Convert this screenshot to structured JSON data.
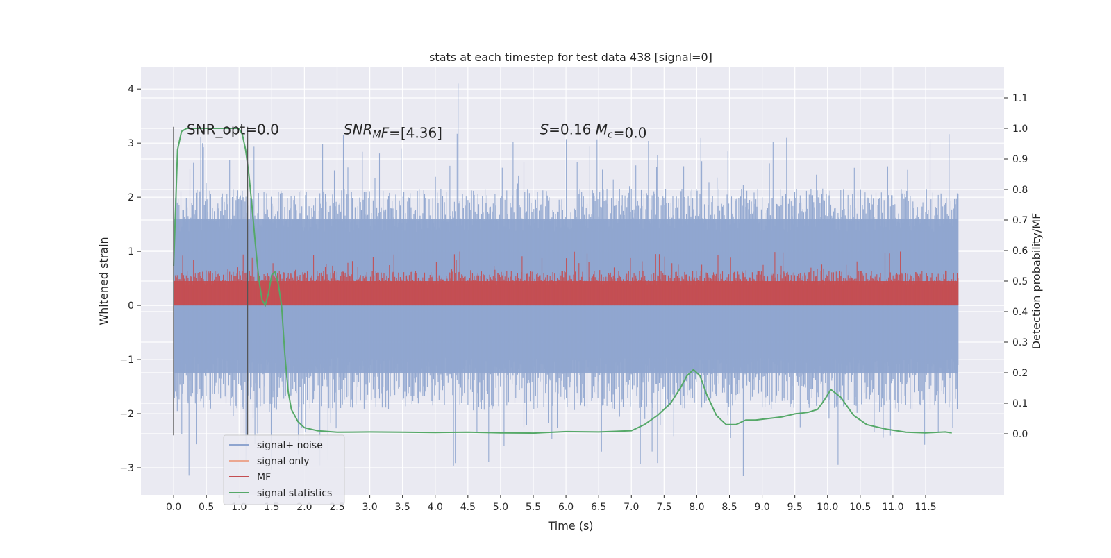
{
  "chart_data": {
    "type": "line",
    "title": "stats at each timestep for test data 438 [signal=0]",
    "xlabel": "Time (s)",
    "ylabel": "Whitened strain",
    "y2label": "Detection probability/MF",
    "xlim": [
      -0.5,
      12.7
    ],
    "ylim": [
      -3.5,
      4.4
    ],
    "y2lim": [
      -0.2,
      1.2
    ],
    "grid": true,
    "x_ticks": [
      0.0,
      0.5,
      1.0,
      1.5,
      2.0,
      2.5,
      3.0,
      3.5,
      4.0,
      4.5,
      5.0,
      5.5,
      6.0,
      6.5,
      7.0,
      7.5,
      8.0,
      8.5,
      9.0,
      9.5,
      10.0,
      10.5,
      11.0,
      11.5
    ],
    "x_tick_labels": [
      "0.0",
      "0.5",
      "1.0",
      "1.5",
      "2.0",
      "2.5",
      "3.0",
      "3.5",
      "4.0",
      "4.5",
      "5.0",
      "5.5",
      "6.0",
      "6.5",
      "7.0",
      "7.5",
      "8.0",
      "8.5",
      "9.0",
      "9.5",
      "10.0",
      "10.5",
      "11.0",
      "11.5"
    ],
    "y_ticks": [
      -3,
      -2,
      -1,
      0,
      1,
      2,
      3,
      4
    ],
    "y_tick_labels": [
      "−3",
      "−2",
      "−1",
      "0",
      "1",
      "2",
      "3",
      "4"
    ],
    "y2_ticks": [
      0.0,
      0.1,
      0.2,
      0.3,
      0.4,
      0.5,
      0.6,
      0.7,
      0.8,
      0.9,
      1.0,
      1.1
    ],
    "y2_tick_labels": [
      "0.0",
      "0.1",
      "0.2",
      "0.3",
      "0.4",
      "0.5",
      "0.6",
      "0.7",
      "0.8",
      "0.9",
      "1.0",
      "1.1"
    ],
    "annotations": [
      {
        "segments": [
          {
            "t": "SNR_opt=0.0",
            "style": "normal"
          }
        ],
        "x": 0.2
      },
      {
        "segments": [
          {
            "t": "SNR",
            "style": "italic"
          },
          {
            "t": "M",
            "style": "italic-sub"
          },
          {
            "t": "F",
            "style": "italic"
          },
          {
            "t": "=[4.36]",
            "style": "normal"
          }
        ],
        "x": 2.6
      },
      {
        "segments": [
          {
            "t": "S",
            "style": "italic"
          },
          {
            "t": "=0.16   ",
            "style": "normal"
          },
          {
            "t": "M",
            "style": "italic"
          },
          {
            "t": "c",
            "style": "italic-sub"
          },
          {
            "t": "=0.0",
            "style": "normal"
          }
        ],
        "x": 5.6
      }
    ],
    "annotation_y": 3.25,
    "vertical_markers": [
      {
        "x": 0.0,
        "ymin": -2.4,
        "ymax": 3.3
      },
      {
        "x": 1.13,
        "ymin": -2.4,
        "ymax": 3.3
      }
    ],
    "legend": {
      "placement": "lower-left",
      "entries": [
        {
          "label": "signal+ noise",
          "color": "#8fa5cf"
        },
        {
          "label": "signal only",
          "color": "#eba791"
        },
        {
          "label": "MF",
          "color": "#c44e52"
        },
        {
          "label": "signal statistics",
          "color": "#55a868"
        }
      ]
    },
    "series": [
      {
        "name": "signal+ noise",
        "axis": "left",
        "color": "#8fa5cf",
        "render": "noise-band",
        "x_range": [
          0.0,
          12.0
        ],
        "band_core": [
          -1.25,
          1.6
        ],
        "spike_max": 3.2,
        "spike_min": -3.2,
        "peak_spike": {
          "x": 4.35,
          "y": 4.1
        }
      },
      {
        "name": "MF",
        "axis": "left",
        "color": "#c44e52",
        "render": "noise-band",
        "x_range": [
          0.0,
          12.0
        ],
        "band_core": [
          0.0,
          0.45
        ],
        "spike_max": 1.0,
        "spike_min": 0.0
      },
      {
        "name": "signal statistics",
        "axis": "right",
        "color": "#55a868",
        "render": "line",
        "x": [
          0.0,
          0.06,
          0.12,
          0.2,
          0.3,
          0.5,
          0.7,
          0.9,
          1.0,
          1.05,
          1.1,
          1.15,
          1.2,
          1.25,
          1.3,
          1.35,
          1.4,
          1.45,
          1.5,
          1.55,
          1.6,
          1.65,
          1.7,
          1.75,
          1.8,
          1.9,
          2.0,
          2.2,
          2.5,
          3.0,
          3.5,
          4.0,
          4.5,
          5.0,
          5.5,
          6.0,
          6.5,
          7.0,
          7.2,
          7.4,
          7.6,
          7.75,
          7.85,
          7.95,
          8.05,
          8.15,
          8.3,
          8.45,
          8.6,
          8.75,
          8.9,
          9.1,
          9.3,
          9.5,
          9.7,
          9.85,
          9.95,
          10.05,
          10.2,
          10.4,
          10.6,
          10.9,
          11.2,
          11.5,
          11.8,
          11.9
        ],
        "y": [
          0.55,
          0.93,
          0.99,
          1.0,
          1.0,
          1.0,
          1.0,
          1.0,
          1.0,
          0.98,
          0.93,
          0.85,
          0.74,
          0.62,
          0.51,
          0.44,
          0.42,
          0.46,
          0.52,
          0.53,
          0.49,
          0.42,
          0.26,
          0.14,
          0.08,
          0.04,
          0.02,
          0.01,
          0.005,
          0.006,
          0.005,
          0.004,
          0.005,
          0.003,
          0.002,
          0.007,
          0.006,
          0.01,
          0.03,
          0.06,
          0.1,
          0.15,
          0.19,
          0.21,
          0.19,
          0.13,
          0.06,
          0.03,
          0.03,
          0.045,
          0.045,
          0.05,
          0.055,
          0.065,
          0.07,
          0.08,
          0.11,
          0.145,
          0.12,
          0.06,
          0.03,
          0.015,
          0.005,
          0.003,
          0.006,
          0.003
        ]
      }
    ]
  }
}
